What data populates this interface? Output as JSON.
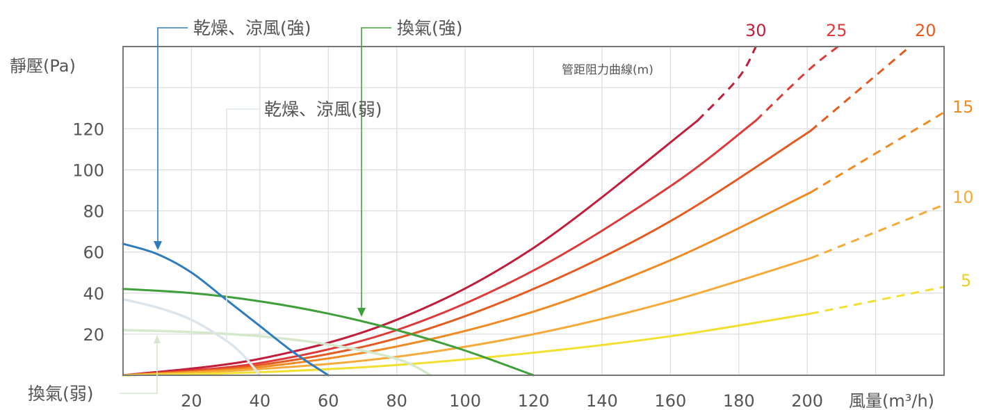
{
  "chart_data": {
    "type": "line",
    "xlabel": "風量(m³/h)",
    "ylabel": "靜壓(Pa)",
    "xlim": [
      0,
      240
    ],
    "ylim": [
      0,
      160
    ],
    "xticks": [
      "20",
      "40",
      "60",
      "80",
      "100",
      "120",
      "140",
      "160",
      "180",
      "200"
    ],
    "yticks": [
      "20",
      "40",
      "60",
      "80",
      "100",
      "120"
    ],
    "grid": true,
    "fan_curves": [
      {
        "name": "乾燥、涼風(強)",
        "color": "#2e7bbf",
        "points": [
          [
            0,
            64
          ],
          [
            10,
            59
          ],
          [
            20,
            50
          ],
          [
            30,
            37
          ],
          [
            40,
            24
          ],
          [
            50,
            11
          ],
          [
            60,
            0
          ]
        ]
      },
      {
        "name": "換氣(強)",
        "color": "#3f9f3a",
        "points": [
          [
            0,
            42
          ],
          [
            20,
            40
          ],
          [
            40,
            36
          ],
          [
            60,
            30
          ],
          [
            80,
            22
          ],
          [
            100,
            12
          ],
          [
            120,
            0
          ]
        ]
      },
      {
        "name": "乾燥、涼風(弱)",
        "color": "#dce5ec",
        "points": [
          [
            0,
            37
          ],
          [
            10,
            33
          ],
          [
            20,
            27
          ],
          [
            30,
            17
          ],
          [
            35,
            10
          ],
          [
            40,
            0
          ]
        ]
      },
      {
        "name": "換氣(弱)",
        "color": "#d6e8cc",
        "points": [
          [
            0,
            22
          ],
          [
            20,
            21
          ],
          [
            40,
            19
          ],
          [
            60,
            15
          ],
          [
            80,
            8
          ],
          [
            90,
            0
          ]
        ]
      }
    ],
    "duct_title": "管距阻力曲線(m)",
    "duct_curves": [
      {
        "name": "30",
        "color": "#c01e3a",
        "solid_to": 168,
        "points": [
          [
            0,
            0
          ],
          [
            40,
            8
          ],
          [
            80,
            27
          ],
          [
            120,
            62
          ],
          [
            168,
            124
          ],
          [
            180,
            145
          ],
          [
            185,
            160
          ]
        ]
      },
      {
        "name": "25",
        "color": "#de3a3a",
        "solid_to": 185,
        "points": [
          [
            0,
            0
          ],
          [
            40,
            6
          ],
          [
            80,
            22
          ],
          [
            120,
            51
          ],
          [
            160,
            92
          ],
          [
            185,
            124
          ],
          [
            200,
            148
          ],
          [
            209,
            160
          ]
        ]
      },
      {
        "name": "20",
        "color": "#e45a20",
        "solid_to": 201,
        "points": [
          [
            0,
            0
          ],
          [
            40,
            5
          ],
          [
            80,
            18
          ],
          [
            120,
            42
          ],
          [
            160,
            75
          ],
          [
            201,
            119
          ],
          [
            230,
            160
          ]
        ]
      },
      {
        "name": "15",
        "color": "#f08a22",
        "solid_to": 201,
        "points": [
          [
            0,
            0
          ],
          [
            40,
            4
          ],
          [
            80,
            14
          ],
          [
            120,
            31
          ],
          [
            160,
            56
          ],
          [
            201,
            89
          ],
          [
            240,
            128
          ]
        ]
      },
      {
        "name": "10",
        "color": "#f5aa3a",
        "solid_to": 201,
        "points": [
          [
            0,
            0
          ],
          [
            40,
            3
          ],
          [
            80,
            9
          ],
          [
            120,
            20
          ],
          [
            160,
            36
          ],
          [
            201,
            57
          ],
          [
            240,
            83
          ]
        ]
      },
      {
        "name": "5",
        "color": "#f2e030",
        "solid_to": 201,
        "points": [
          [
            0,
            0
          ],
          [
            40,
            1.5
          ],
          [
            80,
            5
          ],
          [
            120,
            11
          ],
          [
            160,
            19
          ],
          [
            201,
            30
          ],
          [
            240,
            43
          ]
        ]
      }
    ]
  }
}
